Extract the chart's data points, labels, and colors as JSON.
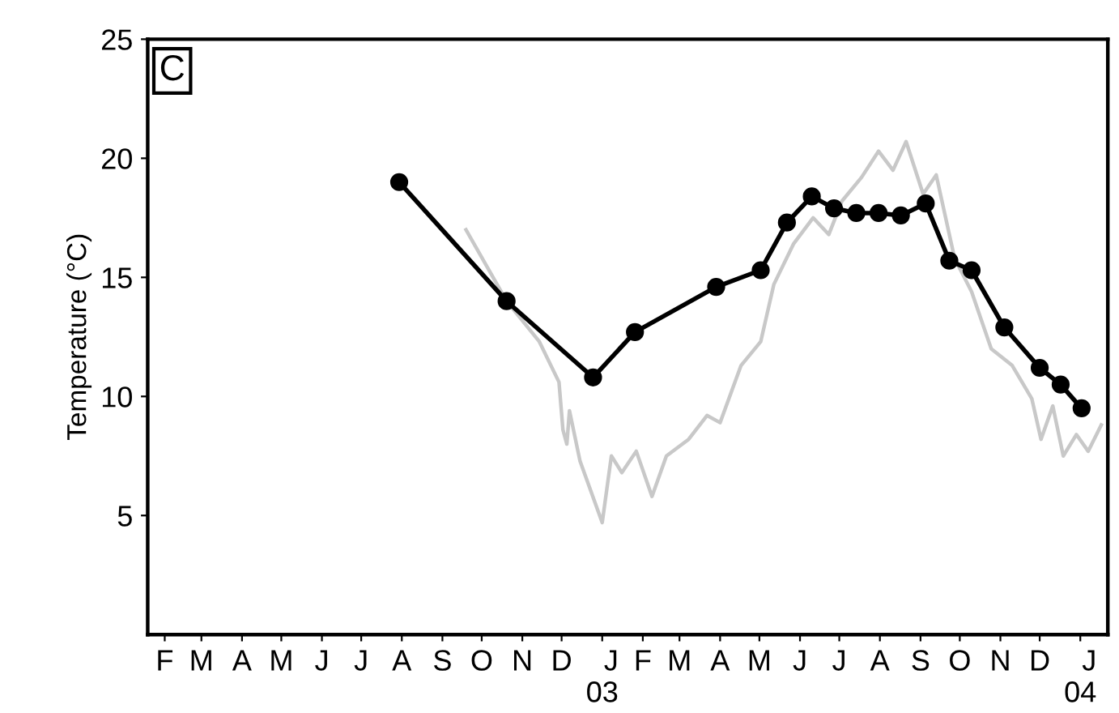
{
  "chart_data": {
    "type": "line",
    "ylabel": "Temperature (°C)",
    "annotations": [
      "C"
    ],
    "ylim": [
      0,
      25
    ],
    "yticks": [
      5,
      10,
      15,
      20,
      25
    ],
    "xlim": [
      "2002-02-02",
      "2004-02-05"
    ],
    "xticks": [
      {
        "value": "2002-02-15",
        "label": "F"
      },
      {
        "value": "2002-03-15",
        "label": "M"
      },
      {
        "value": "2002-04-15",
        "label": "A"
      },
      {
        "value": "2002-05-15",
        "label": "M"
      },
      {
        "value": "2002-06-15",
        "label": "J"
      },
      {
        "value": "2002-07-15",
        "label": "J"
      },
      {
        "value": "2002-08-15",
        "label": "A"
      },
      {
        "value": "2002-09-15",
        "label": "S"
      },
      {
        "value": "2002-10-15",
        "label": "O"
      },
      {
        "value": "2002-11-15",
        "label": "N"
      },
      {
        "value": "2002-12-15",
        "label": "D"
      },
      {
        "value": "2003-01-15",
        "label": "J\n03"
      },
      {
        "value": "2003-02-15",
        "label": "F"
      },
      {
        "value": "2003-03-15",
        "label": "M"
      },
      {
        "value": "2003-04-15",
        "label": "A"
      },
      {
        "value": "2003-05-15",
        "label": "M"
      },
      {
        "value": "2003-06-15",
        "label": "J"
      },
      {
        "value": "2003-07-15",
        "label": "J"
      },
      {
        "value": "2003-08-15",
        "label": "A"
      },
      {
        "value": "2003-09-15",
        "label": "S"
      },
      {
        "value": "2003-10-15",
        "label": "O"
      },
      {
        "value": "2003-11-15",
        "label": "N"
      },
      {
        "value": "2003-12-15",
        "label": "D"
      },
      {
        "value": "2004-01-15",
        "label": "J\n04"
      }
    ],
    "grid": false,
    "legend": false,
    "series": [
      {
        "color": "#c8c8c8",
        "marker": "none",
        "x": [
          "2002-10-03",
          "2002-11-03",
          "2002-11-28",
          "2002-12-13",
          "2002-12-16",
          "2002-12-19",
          "2002-12-21",
          "2002-12-29",
          "2003-01-15",
          "2003-01-22",
          "2003-01-30",
          "2003-02-10",
          "2003-02-22",
          "2003-03-05",
          "2003-03-22",
          "2003-04-05",
          "2003-04-15",
          "2003-05-01",
          "2003-05-16",
          "2003-05-26",
          "2003-06-10",
          "2003-06-25",
          "2003-07-07",
          "2003-07-17",
          "2003-08-01",
          "2003-08-14",
          "2003-08-25",
          "2003-09-04",
          "2003-09-17",
          "2003-09-27",
          "2003-10-11",
          "2003-10-24",
          "2003-11-08",
          "2003-11-24",
          "2003-12-09",
          "2003-12-16",
          "2003-12-25",
          "2004-01-02",
          "2004-01-12",
          "2004-01-21",
          "2004-01-31"
        ],
        "values": [
          17.0,
          14.0,
          12.3,
          10.6,
          8.6,
          8.0,
          9.4,
          7.3,
          4.7,
          7.5,
          6.8,
          7.7,
          5.8,
          7.5,
          8.2,
          9.2,
          8.9,
          11.3,
          12.3,
          14.7,
          16.4,
          17.5,
          16.8,
          18.2,
          19.2,
          20.3,
          19.5,
          20.7,
          18.5,
          19.3,
          15.8,
          14.4,
          12.0,
          11.3,
          9.9,
          8.2,
          9.6,
          7.5,
          8.4,
          7.7,
          8.8
        ]
      },
      {
        "color": "#000000",
        "marker": "circle",
        "x": [
          "2002-08-13",
          "2002-11-03",
          "2003-01-08",
          "2003-02-09",
          "2003-04-12",
          "2003-05-16",
          "2003-06-05",
          "2003-06-24",
          "2003-07-11",
          "2003-07-28",
          "2003-08-14",
          "2003-08-31",
          "2003-09-19",
          "2003-10-07",
          "2003-10-24",
          "2003-11-18",
          "2003-12-15",
          "2003-12-31",
          "2004-01-16"
        ],
        "values": [
          19.0,
          14.0,
          10.8,
          12.7,
          14.6,
          15.3,
          17.3,
          18.4,
          17.9,
          17.7,
          17.7,
          17.6,
          18.1,
          15.7,
          15.3,
          12.9,
          11.2,
          10.5,
          9.5
        ]
      }
    ]
  }
}
